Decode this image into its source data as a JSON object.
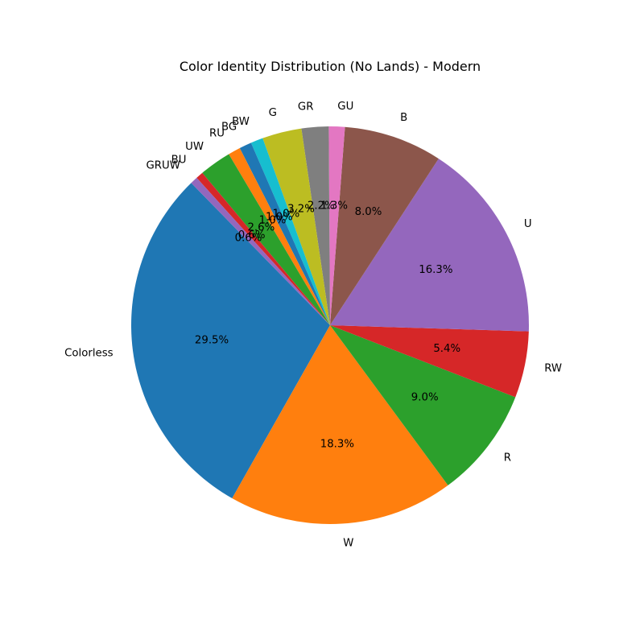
{
  "chart_data": {
    "type": "pie",
    "title": "Color Identity Distribution (No Lands) - Modern",
    "start_angle_deg": 134.3,
    "direction": "counterclockwise",
    "slices": [
      {
        "label": "Colorless",
        "value": 29.5,
        "pct_label": "29.5%",
        "color": "#1f77b4"
      },
      {
        "label": "W",
        "value": 18.3,
        "pct_label": "18.3%",
        "color": "#ff7f0e"
      },
      {
        "label": "R",
        "value": 9.0,
        "pct_label": "9.0%",
        "color": "#2ca02c"
      },
      {
        "label": "RW",
        "value": 5.4,
        "pct_label": "5.4%",
        "color": "#d62728"
      },
      {
        "label": "U",
        "value": 16.3,
        "pct_label": "16.3%",
        "color": "#9467bd"
      },
      {
        "label": "B",
        "value": 8.0,
        "pct_label": "8.0%",
        "color": "#8c564b"
      },
      {
        "label": "GU",
        "value": 1.3,
        "pct_label": "1.3%",
        "color": "#e377c2"
      },
      {
        "label": "GR",
        "value": 2.2,
        "pct_label": "2.2%",
        "color": "#7f7f7f"
      },
      {
        "label": "G",
        "value": 3.2,
        "pct_label": "3.2%",
        "color": "#bcbd22"
      },
      {
        "label": "BW",
        "value": 1.0,
        "pct_label": "1.0%",
        "color": "#17becf"
      },
      {
        "label": "BG",
        "value": 1.0,
        "pct_label": "1.0%",
        "color": "#1f77b4"
      },
      {
        "label": "RU",
        "value": 1.0,
        "pct_label": "1.0%",
        "color": "#ff7f0e"
      },
      {
        "label": "UW",
        "value": 2.6,
        "pct_label": "2.6%",
        "color": "#2ca02c"
      },
      {
        "label": "BU",
        "value": 0.6,
        "pct_label": "0.6%",
        "color": "#d62728"
      },
      {
        "label": "GRUW",
        "value": 0.6,
        "pct_label": "0.6%",
        "color": "#9467bd"
      }
    ]
  }
}
